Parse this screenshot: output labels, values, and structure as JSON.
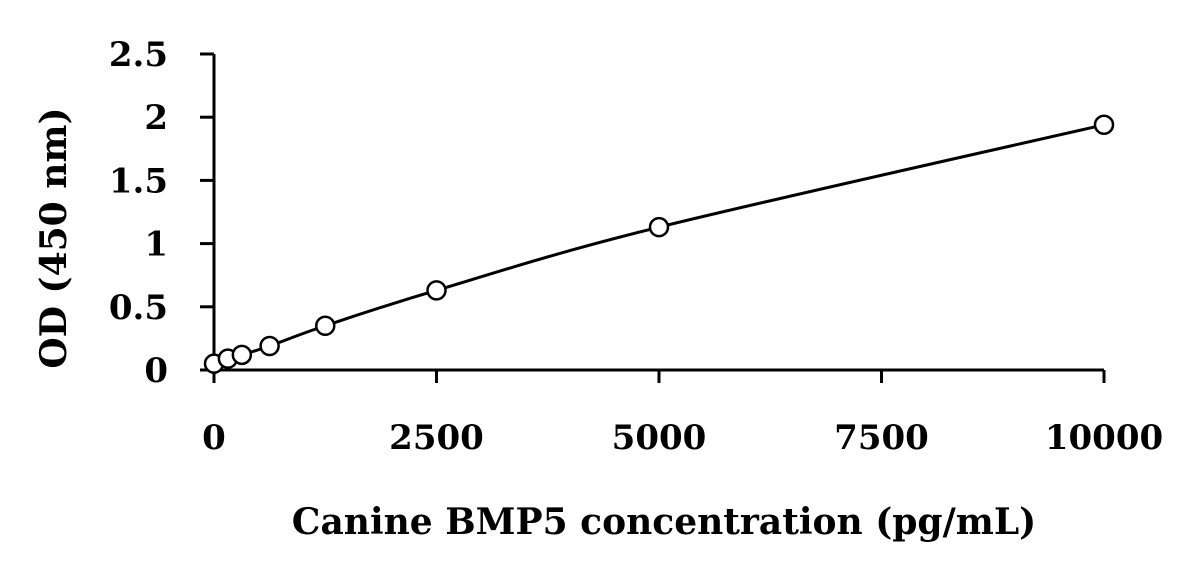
{
  "chart_data": {
    "type": "scatter",
    "title": "",
    "xlabel": "Canine BMP5 concentration (pg/mL)",
    "ylabel": "OD (450 nm)",
    "xlim": [
      0,
      10000
    ],
    "ylim": [
      0,
      2.5
    ],
    "xticks": [
      0,
      2500,
      5000,
      7500,
      10000
    ],
    "xtick_labels": [
      "0",
      "2500",
      "5000",
      "7500",
      "10000"
    ],
    "yticks": [
      0,
      0.5,
      1,
      1.5,
      2,
      2.5
    ],
    "ytick_labels": [
      "0",
      "0.5",
      "1",
      "1.5",
      "2",
      "2.5"
    ],
    "grid": false,
    "legend": "none",
    "series": [
      {
        "marker": "open-circle",
        "fit_line": "smooth",
        "x": [
          0,
          156,
          313,
          625,
          1250,
          2500,
          5000,
          10000
        ],
        "y": [
          0.05,
          0.09,
          0.12,
          0.19,
          0.35,
          0.63,
          1.13,
          1.94
        ]
      }
    ]
  }
}
